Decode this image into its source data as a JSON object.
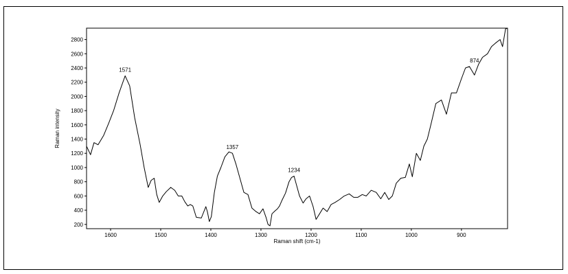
{
  "chart_data": {
    "type": "line",
    "xlabel": "Raman shift (cm-1)",
    "ylabel": "Raman intensity",
    "xlim": [
      1648,
      808
    ],
    "ylim": [
      140,
      2960
    ],
    "x_reversed": true,
    "grid": false,
    "x_ticks": [
      1600,
      1500,
      1400,
      1300,
      1200,
      1100,
      1000,
      900
    ],
    "y_ticks": [
      200,
      400,
      600,
      800,
      1000,
      1200,
      1400,
      1600,
      1800,
      2000,
      2200,
      2400,
      2600,
      2800
    ],
    "annotations": [
      {
        "label": "1571",
        "x": 1571,
        "y": 2290
      },
      {
        "label": "1357",
        "x": 1357,
        "y": 1200
      },
      {
        "label": "1234",
        "x": 1234,
        "y": 880
      },
      {
        "label": "874",
        "x": 874,
        "y": 2420
      }
    ],
    "series": [
      {
        "color": "#000000",
        "x": [
          1648,
          1640,
          1633,
          1625,
          1614,
          1604,
          1594,
          1583,
          1571,
          1562,
          1552,
          1541,
          1533,
          1525,
          1519,
          1513,
          1508,
          1503,
          1496,
          1489,
          1480,
          1472,
          1465,
          1458,
          1452,
          1446,
          1441,
          1436,
          1429,
          1419,
          1410,
          1407,
          1403,
          1399,
          1393,
          1387,
          1380,
          1372,
          1364,
          1357,
          1350,
          1342,
          1334,
          1326,
          1318,
          1310,
          1303,
          1296,
          1290,
          1286,
          1282,
          1278,
          1272,
          1267,
          1263,
          1258,
          1251,
          1244,
          1239,
          1234,
          1229,
          1223,
          1216,
          1210,
          1203,
          1196,
          1190,
          1183,
          1176,
          1168,
          1160,
          1152,
          1143,
          1134,
          1124,
          1115,
          1107,
          1098,
          1090,
          1080,
          1070,
          1061,
          1053,
          1045,
          1038,
          1030,
          1021,
          1012,
          1004,
          998,
          990,
          982,
          975,
          968,
          961,
          951,
          940,
          930,
          920,
          910,
          900,
          892,
          884,
          874,
          866,
          858,
          848,
          840,
          832,
          823,
          818,
          812,
          808
        ],
        "y": [
          1300,
          1180,
          1350,
          1320,
          1450,
          1620,
          1800,
          2050,
          2290,
          2150,
          1700,
          1320,
          1000,
          720,
          820,
          850,
          620,
          510,
          600,
          660,
          720,
          680,
          600,
          600,
          520,
          460,
          480,
          460,
          300,
          290,
          450,
          380,
          240,
          310,
          650,
          880,
          1000,
          1150,
          1220,
          1200,
          1050,
          850,
          650,
          620,
          430,
          380,
          350,
          420,
          300,
          200,
          180,
          350,
          390,
          420,
          460,
          540,
          640,
          800,
          860,
          880,
          750,
          600,
          500,
          560,
          600,
          450,
          270,
          350,
          430,
          380,
          480,
          510,
          550,
          600,
          630,
          580,
          580,
          620,
          600,
          680,
          650,
          560,
          650,
          550,
          600,
          780,
          850,
          860,
          1050,
          870,
          1200,
          1100,
          1300,
          1400,
          1600,
          1900,
          1950,
          1750,
          2050,
          2050,
          2250,
          2400,
          2420,
          2300,
          2450,
          2550,
          2600,
          2700,
          2750,
          2800,
          2700,
          2950,
          2960
        ]
      }
    ]
  }
}
